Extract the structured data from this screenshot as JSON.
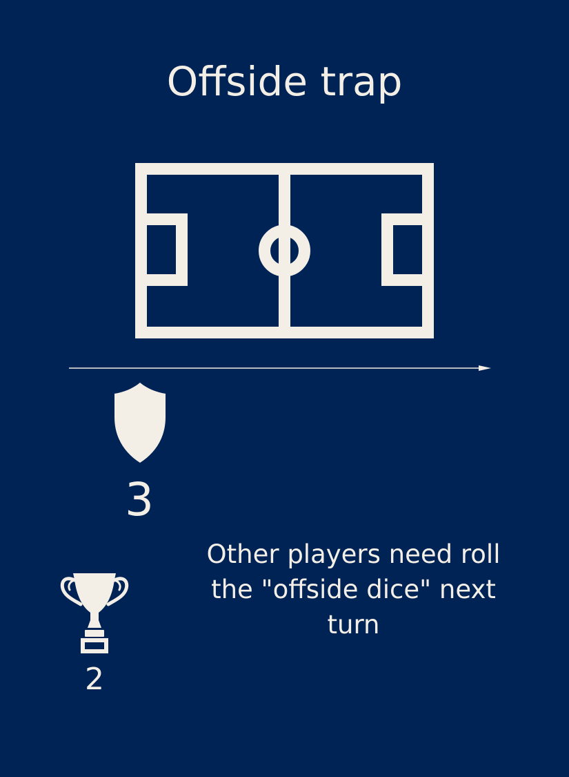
{
  "card": {
    "title": "Offside trap",
    "defense_value": "3",
    "score_value": "2",
    "effect_text": "Other players need roll the \"offside dice\" next turn"
  },
  "icons": {
    "field": "football-pitch-icon",
    "arrow": "direction-arrow-icon",
    "defense": "shield-icon",
    "score": "trophy-icon"
  },
  "colors": {
    "background": "#002355",
    "foreground": "#f4efe6"
  }
}
